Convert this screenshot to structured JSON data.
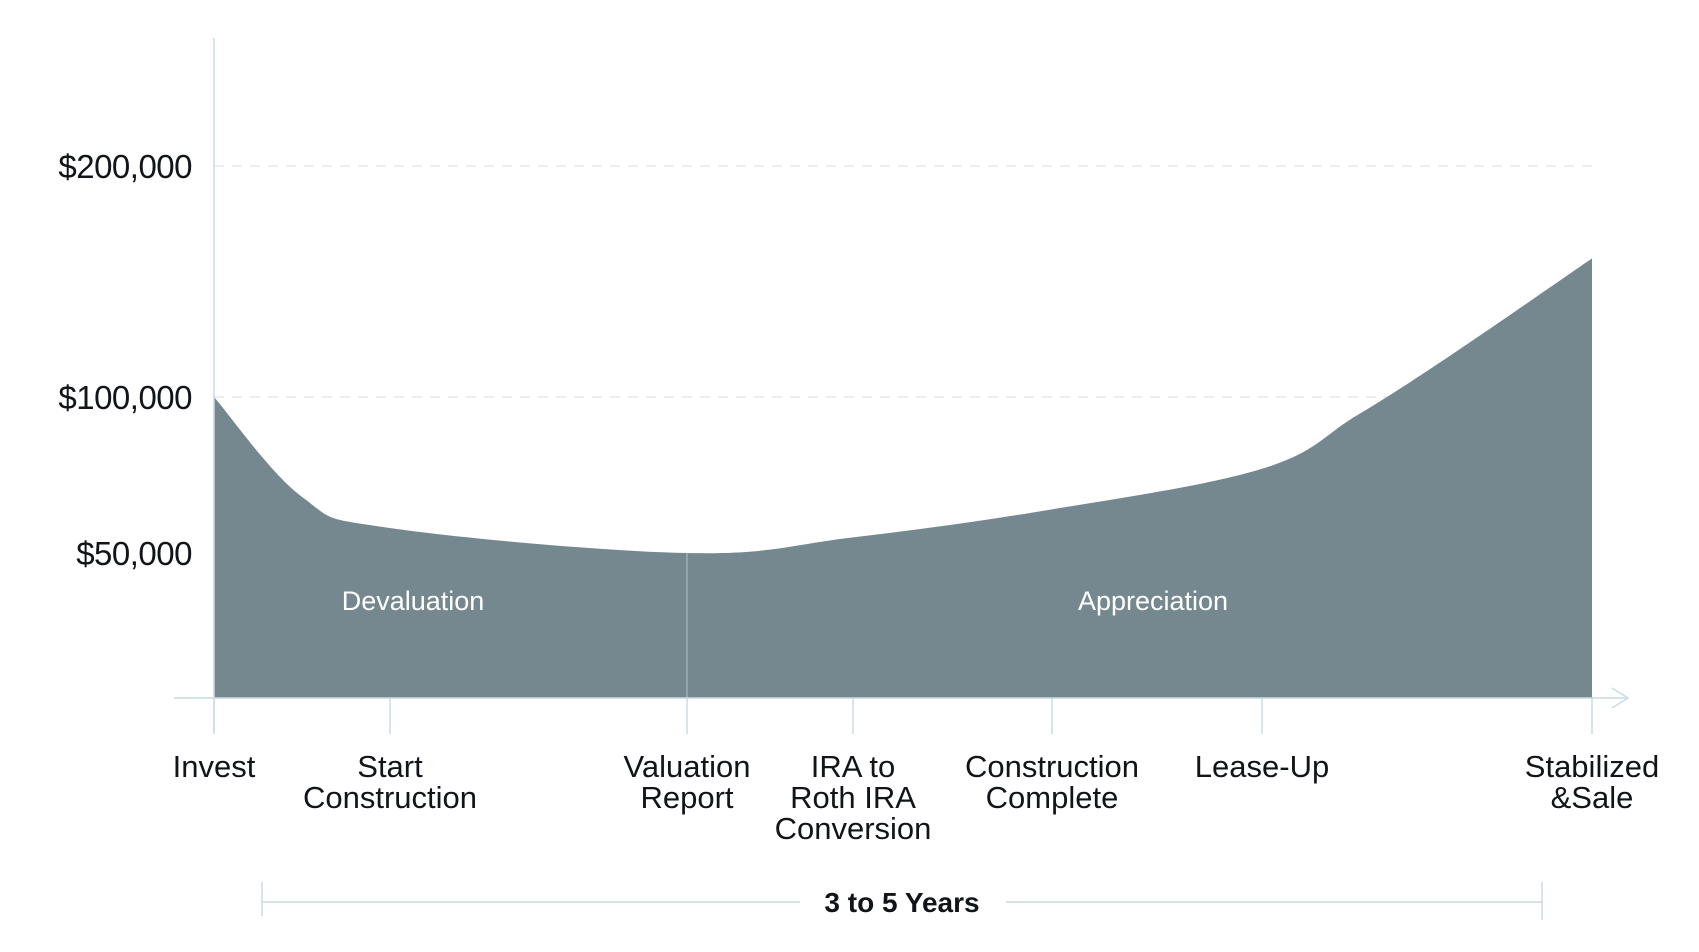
{
  "chart_data": {
    "type": "area",
    "x": [
      0,
      0.5,
      1,
      2,
      3,
      4,
      5,
      6,
      7,
      8.5
    ],
    "values": [
      100000,
      68000,
      58000,
      50000,
      55000,
      64000,
      77000,
      94000,
      118000,
      160000
    ],
    "y_ticks": [
      {
        "value": 50000,
        "label": "$50,000"
      },
      {
        "value": 100000,
        "label": "$100,000"
      },
      {
        "value": 200000,
        "label": "$200,000"
      }
    ],
    "x_milestones": [
      {
        "x": 0,
        "lines": [
          "Invest"
        ]
      },
      {
        "x": 1,
        "lines": [
          "Start",
          "Construction"
        ]
      },
      {
        "x": 2,
        "lines": [
          "Valuation",
          "Report"
        ]
      },
      {
        "x": 3,
        "lines": [
          "IRA to",
          "Roth IRA",
          "Conversion"
        ]
      },
      {
        "x": 4,
        "lines": [
          "Construction",
          "Complete"
        ]
      },
      {
        "x": 5,
        "lines": [
          "Lease-Up"
        ]
      },
      {
        "x": 8.5,
        "lines": [
          "Stabilized",
          "&Sale"
        ]
      }
    ],
    "regions": [
      {
        "label": "Devaluation",
        "from": 0,
        "to": 2
      },
      {
        "label": "Appreciation",
        "from": 2,
        "to": 8.5
      }
    ],
    "duration": {
      "label": "3 to 5 Years"
    },
    "grid": true,
    "colors": {
      "area": "#758890",
      "axis": "#c9dce3",
      "grid": "#e4e8ea",
      "text": "#111418"
    }
  }
}
